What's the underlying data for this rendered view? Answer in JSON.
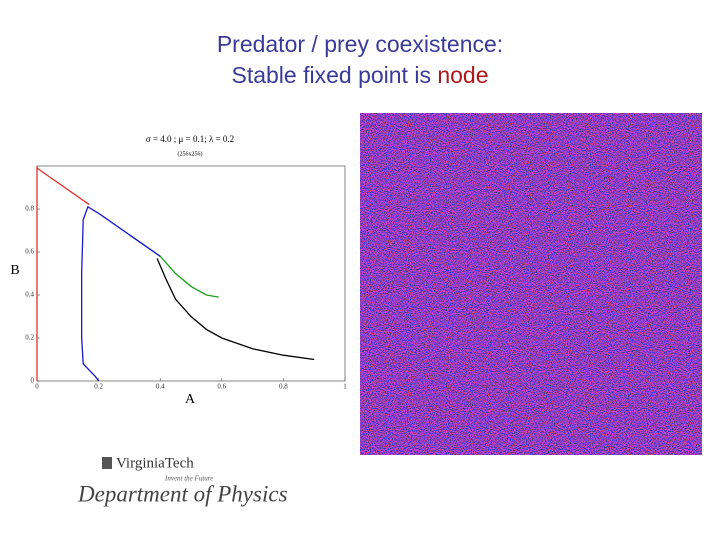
{
  "slide": {
    "title_line1": "Predator / prey coexistence:",
    "title_line2": "Stable fixed point is",
    "title_highlight": "node"
  },
  "chart_data": {
    "type": "line",
    "title": "σ = 4.0 ; μ = 0.1; λ = 0.2",
    "subtitle": "(256x256)",
    "x_label": "A",
    "y_label": "B",
    "xlim": [
      0,
      1
    ],
    "ylim": [
      0,
      1
    ],
    "xticks": [
      0,
      0.2,
      0.4,
      0.6,
      0.8,
      1
    ],
    "yticks": [
      0,
      0.2,
      0.4,
      0.6,
      0.8
    ],
    "series": [
      {
        "color": "#e03030",
        "x": [
          0,
          0
        ],
        "values": [
          0,
          1
        ]
      },
      {
        "color": "#e03030",
        "x": [
          0,
          0.17
        ],
        "values": [
          0.99,
          0.82
        ]
      },
      {
        "color": "#20a020",
        "x": [
          0.3,
          0.4,
          0.45,
          0.5,
          0.55,
          0.59
        ],
        "values": [
          0.68,
          0.58,
          0.5,
          0.44,
          0.4,
          0.39
        ]
      },
      {
        "color": "#000000",
        "x": [
          0.39,
          0.42,
          0.45,
          0.5,
          0.55,
          0.6,
          0.7,
          0.8,
          0.9
        ],
        "values": [
          0.57,
          0.47,
          0.38,
          0.3,
          0.24,
          0.2,
          0.15,
          0.12,
          0.1
        ]
      },
      {
        "color": "#1a1ad0",
        "x": [
          0.2,
          0.19,
          0.15,
          0.145,
          0.145,
          0.15,
          0.165,
          0.2,
          0.3,
          0.4
        ],
        "values": [
          0,
          0.02,
          0.08,
          0.2,
          0.5,
          0.75,
          0.81,
          0.78,
          0.68,
          0.58
        ]
      }
    ]
  },
  "logo": {
    "university": "VirginiaTech",
    "tagline": "Invent the Future",
    "department": "Department of Physics"
  }
}
